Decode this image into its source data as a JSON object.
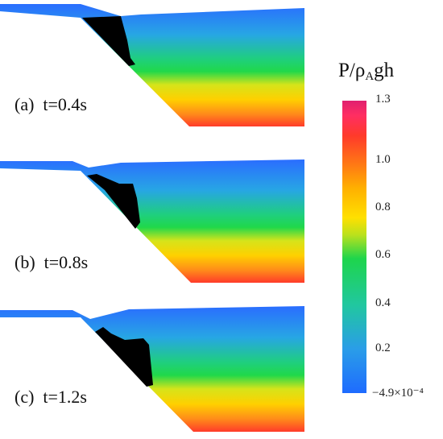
{
  "panels": [
    {
      "label": "(a)  t=0.4s"
    },
    {
      "label": "(b)  t=0.8s"
    },
    {
      "label": "(c)  t=1.2s"
    }
  ],
  "colorbar": {
    "title_main": "P/ρ",
    "title_sub": "A",
    "title_tail": "gh",
    "ticks": [
      "1.3",
      "1.0",
      "0.8",
      "0.6",
      "0.4",
      "0.2",
      "−4.9×10⁻⁴"
    ],
    "tick_values": [
      1.3,
      1.0,
      0.8,
      0.6,
      0.4,
      0.2,
      -0.00049
    ],
    "colors": {
      "low": "#1e6bff",
      "mid_low": "#21c7a0",
      "mid": "#1ed54c",
      "mid_high": "#ffe000",
      "high": "#ff3a2a",
      "top": "#e02070"
    }
  }
}
